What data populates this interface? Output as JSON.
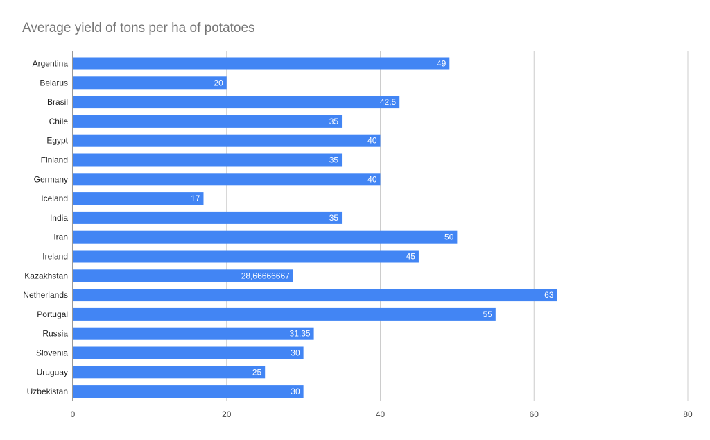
{
  "chart_data": {
    "type": "bar",
    "orientation": "horizontal",
    "title": "Average yield of tons per ha of potatoes",
    "xlabel": "",
    "ylabel": "",
    "categories": [
      "Argentina",
      "Belarus",
      "Brasil",
      "Chile",
      "Egypt",
      "Finland",
      "Germany",
      "Iceland",
      "India",
      "Iran",
      "Ireland",
      "Kazakhstan",
      "Netherlands",
      "Portugal",
      "Russia",
      "Slovenia",
      "Uruguay",
      "Uzbekistan"
    ],
    "values": [
      49,
      20,
      42.5,
      35,
      40,
      35,
      40,
      17,
      35,
      50,
      45,
      28.66666667,
      63,
      55,
      31.35,
      30,
      25,
      30
    ],
    "value_labels": [
      "49",
      "20",
      "42,5",
      "35",
      "40",
      "35",
      "40",
      "17",
      "35",
      "50",
      "45",
      "28,66666667",
      "63",
      "55",
      "31,35",
      "30",
      "25",
      "30"
    ],
    "xlim": [
      0,
      80
    ],
    "x_ticks": [
      "0",
      "20",
      "40",
      "60",
      "80"
    ],
    "grid": true,
    "legend": "none",
    "bar_color": "#4285f4",
    "grid_color": "#cccccc",
    "axis_color": "#333333"
  }
}
